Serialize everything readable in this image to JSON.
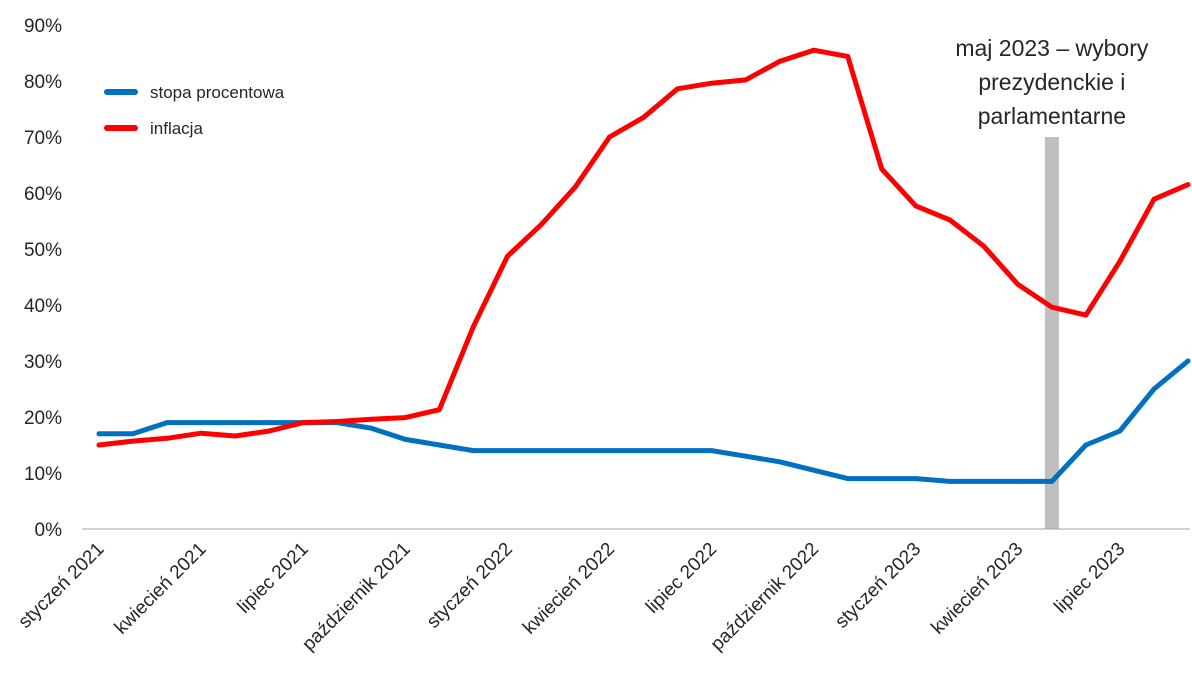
{
  "chart_data": {
    "type": "line",
    "title": "",
    "xlabel": "",
    "ylabel": "",
    "x": [
      "2021-01",
      "2021-02",
      "2021-03",
      "2021-04",
      "2021-05",
      "2021-06",
      "2021-07",
      "2021-08",
      "2021-09",
      "2021-10",
      "2021-11",
      "2021-12",
      "2022-01",
      "2022-02",
      "2022-03",
      "2022-04",
      "2022-05",
      "2022-06",
      "2022-07",
      "2022-08",
      "2022-09",
      "2022-10",
      "2022-11",
      "2022-12",
      "2023-01",
      "2023-02",
      "2023-03",
      "2023-04",
      "2023-05",
      "2023-06",
      "2023-07",
      "2023-08",
      "2023-09"
    ],
    "x_tick_labels": [
      {
        "index": 0,
        "label": "styczeń 2021"
      },
      {
        "index": 3,
        "label": "kwiecień 2021"
      },
      {
        "index": 6,
        "label": "lipiec 2021"
      },
      {
        "index": 9,
        "label": "październik 2021"
      },
      {
        "index": 12,
        "label": "styczeń 2022"
      },
      {
        "index": 15,
        "label": "kwiecień 2022"
      },
      {
        "index": 18,
        "label": "lipiec 2022"
      },
      {
        "index": 21,
        "label": "październik 2022"
      },
      {
        "index": 24,
        "label": "styczeń 2023"
      },
      {
        "index": 27,
        "label": "kwiecień 2023"
      },
      {
        "index": 30,
        "label": "lipiec 2023"
      }
    ],
    "y_ticks": [
      "0%",
      "10%",
      "20%",
      "30%",
      "40%",
      "50%",
      "60%",
      "70%",
      "80%",
      "90%"
    ],
    "ylim": [
      0,
      90
    ],
    "y_unit": "%",
    "grid": false,
    "legend_position": "top-left",
    "series": [
      {
        "name": "stopa procentowa",
        "color": "#0070C0",
        "values": [
          17,
          17,
          19,
          19,
          19,
          19,
          19,
          19,
          18,
          16,
          15,
          14,
          14,
          14,
          14,
          14,
          14,
          14,
          14,
          13,
          12,
          10.5,
          9,
          9,
          9,
          8.5,
          8.5,
          8.5,
          8.5,
          15,
          17.5,
          25,
          30
        ]
      },
      {
        "name": "inflacja",
        "color": "#FF0000",
        "values": [
          15,
          15.7,
          16.2,
          17.1,
          16.6,
          17.5,
          19,
          19.2,
          19.6,
          19.9,
          21.3,
          36.1,
          48.7,
          54.4,
          61.1,
          70,
          73.5,
          78.6,
          79.6,
          80.2,
          83.5,
          85.5,
          84.4,
          64.3,
          57.7,
          55.2,
          50.5,
          43.7,
          39.6,
          38.2,
          47.8,
          58.9,
          61.5
        ]
      }
    ],
    "annotations": [
      {
        "type": "vertical-band",
        "x_index": 28,
        "y_top": 70,
        "color": "#BFBFBF",
        "lines": [
          "maj 2023 – wybory",
          "prezydenckie i",
          "parlamentarne"
        ]
      }
    ]
  }
}
